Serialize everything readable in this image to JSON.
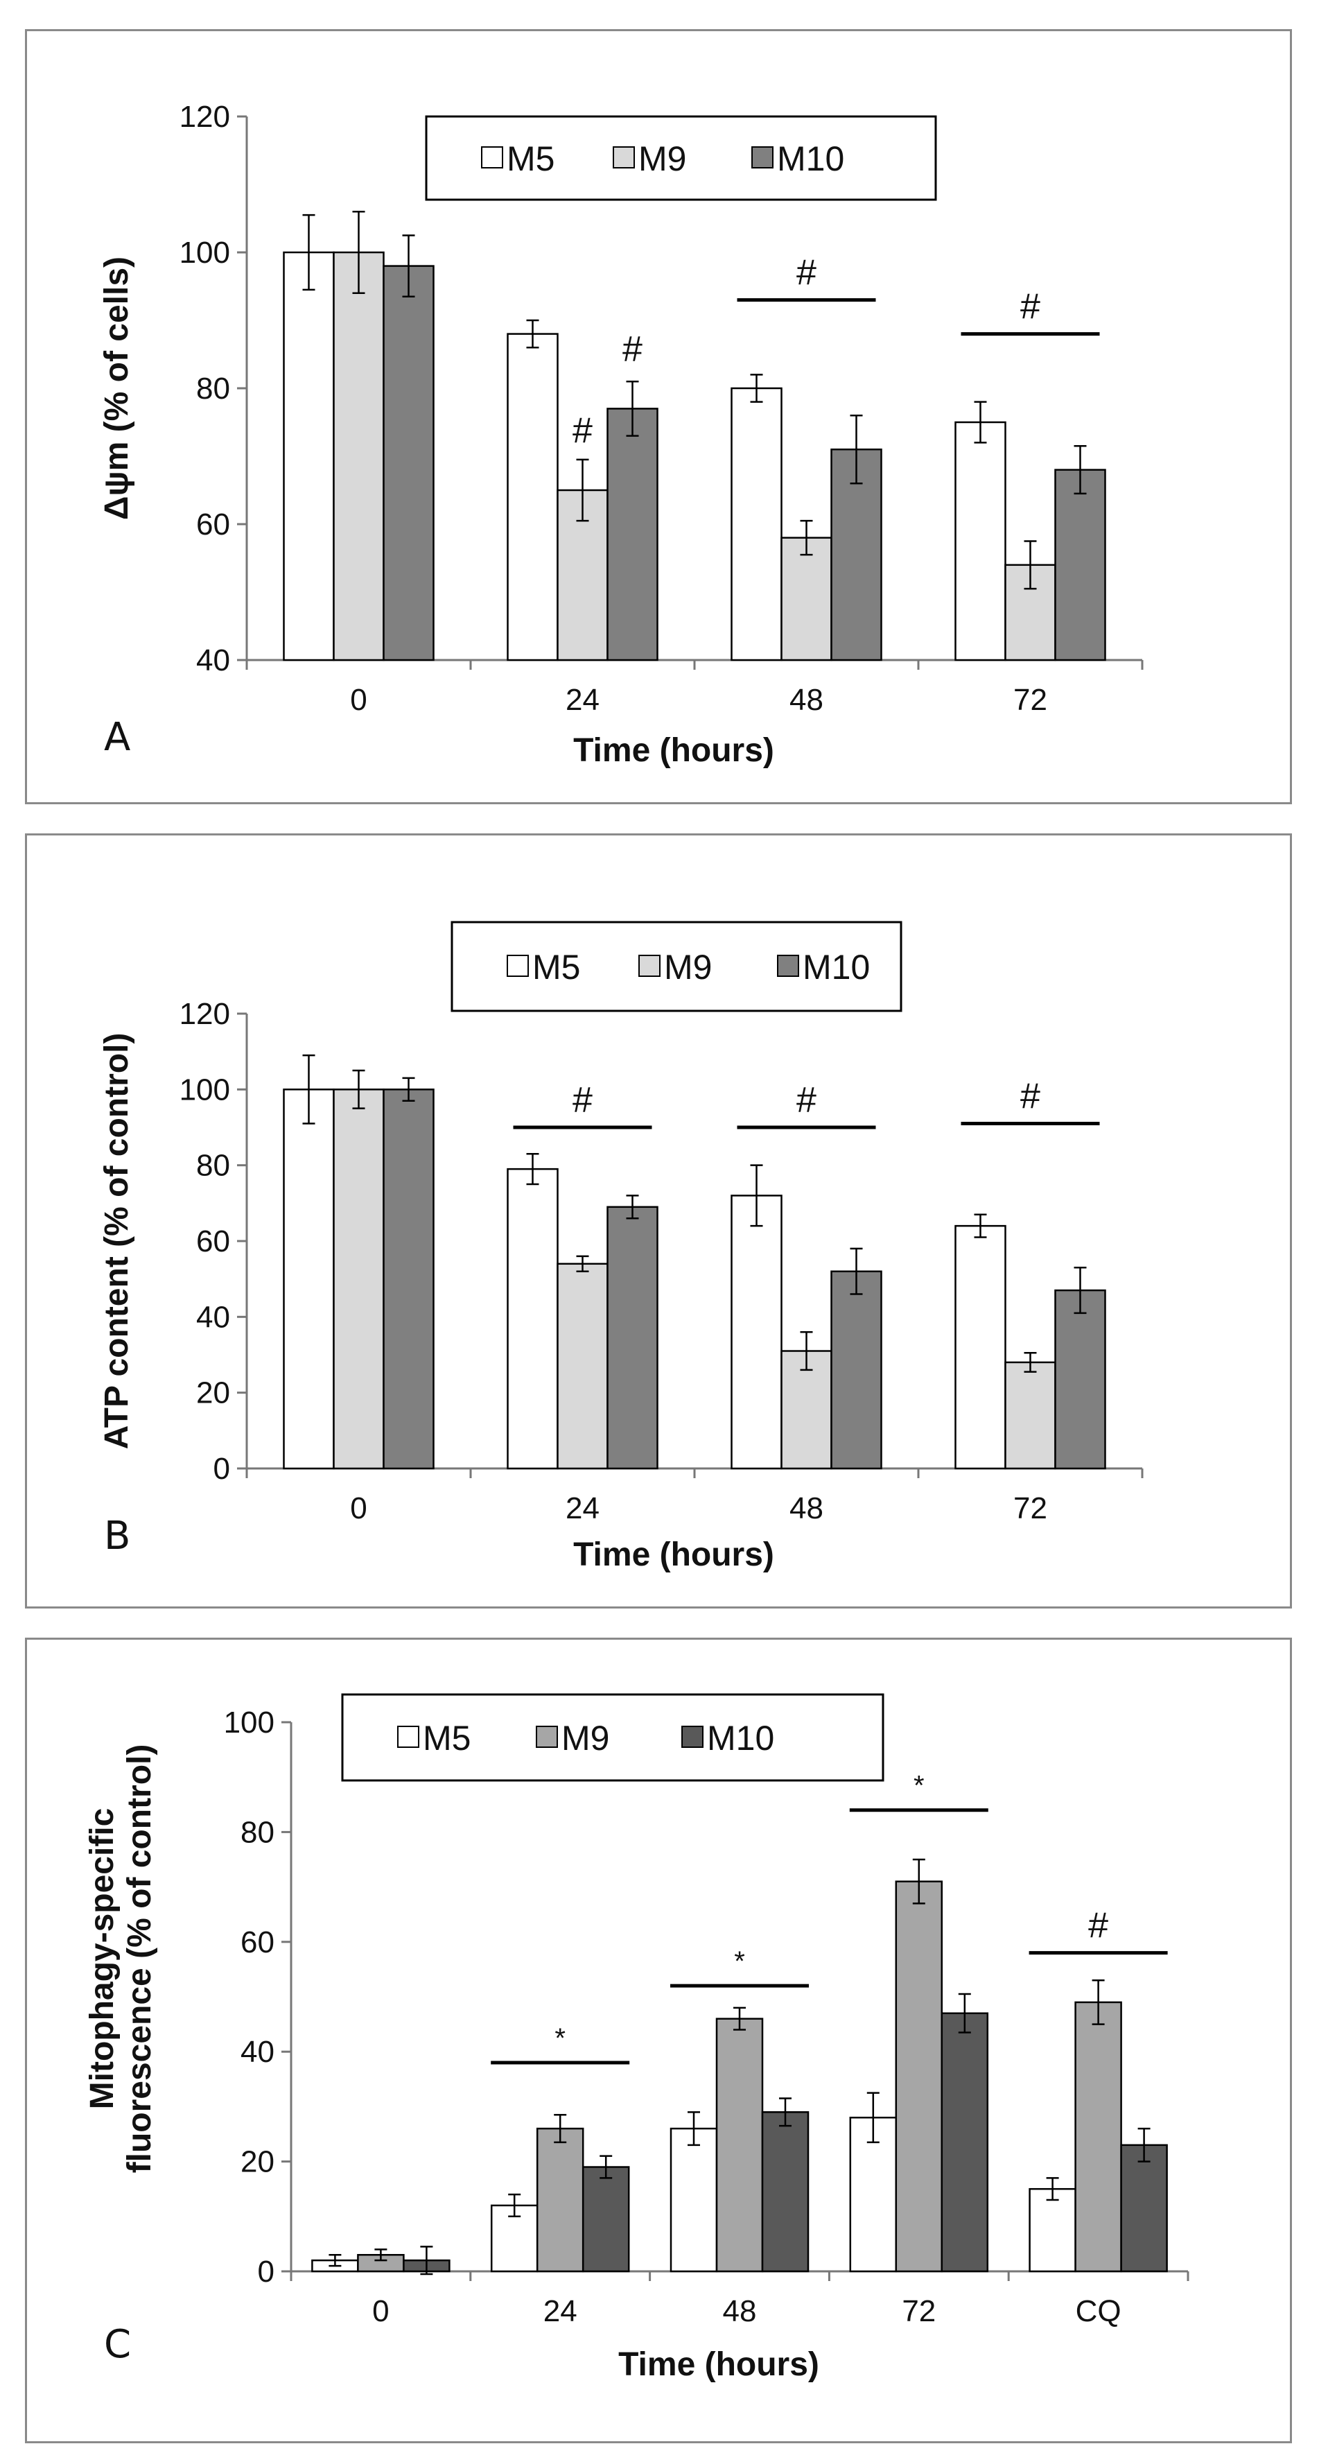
{
  "chart_data": [
    {
      "panel": "A",
      "type": "bar",
      "categories": [
        "0",
        "24",
        "48",
        "72"
      ],
      "series": [
        {
          "name": "M5",
          "color": "#ffffff",
          "values": [
            100,
            88,
            80,
            75
          ],
          "errors": [
            5.5,
            2,
            2,
            3
          ]
        },
        {
          "name": "M9",
          "color": "#d9d9d9",
          "values": [
            100,
            65,
            58,
            54
          ],
          "errors": [
            6,
            4.5,
            2.5,
            3.5
          ]
        },
        {
          "name": "M10",
          "color": "#808080",
          "values": [
            98,
            77,
            71,
            68
          ],
          "errors": [
            4.5,
            4,
            5,
            3.5
          ]
        }
      ],
      "yticks": [
        40,
        60,
        80,
        100,
        120
      ],
      "ylim": [
        40,
        120
      ],
      "xlabel": "Time (hours)",
      "ylabel": "Δψm (% of cells)",
      "legend": "top-center",
      "annotations": [
        {
          "text": "#",
          "category": 1,
          "series": 1,
          "y": 72,
          "size": "large",
          "line": false
        },
        {
          "text": "#",
          "category": 1,
          "series": 2,
          "y": 84,
          "size": "large",
          "line": false
        },
        {
          "text": "#",
          "category": 2,
          "y": 93,
          "size": "large",
          "line": true
        },
        {
          "text": "#",
          "category": 3,
          "y": 88,
          "size": "large",
          "line": true
        }
      ]
    },
    {
      "panel": "B",
      "type": "bar",
      "categories": [
        "0",
        "24",
        "48",
        "72"
      ],
      "series": [
        {
          "name": "M5",
          "color": "#ffffff",
          "values": [
            100,
            79,
            72,
            64
          ],
          "errors": [
            9,
            4,
            8,
            3
          ]
        },
        {
          "name": "M9",
          "color": "#d9d9d9",
          "values": [
            100,
            54,
            31,
            28
          ],
          "errors": [
            5,
            2,
            5,
            2.5
          ]
        },
        {
          "name": "M10",
          "color": "#808080",
          "values": [
            100,
            69,
            52,
            47
          ],
          "errors": [
            3,
            3,
            6,
            6
          ]
        }
      ],
      "yticks": [
        0,
        20,
        40,
        60,
        80,
        100,
        120
      ],
      "ylim": [
        0,
        120
      ],
      "xlabel": "Time (hours)",
      "ylabel": "ATP content (% of control)",
      "legend": "top-center",
      "annotations": [
        {
          "text": "#",
          "category": 1,
          "y": 90,
          "size": "large",
          "line": true
        },
        {
          "text": "#",
          "category": 2,
          "y": 90,
          "size": "large",
          "line": true
        },
        {
          "text": "#",
          "category": 3,
          "y": 91,
          "size": "large",
          "line": true
        }
      ]
    },
    {
      "panel": "C",
      "type": "bar",
      "categories": [
        "0",
        "24",
        "48",
        "72",
        "CQ"
      ],
      "series": [
        {
          "name": "M5",
          "color": "#ffffff",
          "values": [
            2,
            12,
            26,
            28,
            15
          ],
          "errors": [
            1,
            2,
            3,
            4.5,
            2
          ]
        },
        {
          "name": "M9",
          "color": "#a6a6a6",
          "values": [
            3,
            26,
            46,
            71,
            49
          ],
          "errors": [
            1,
            2.5,
            2,
            4,
            4
          ]
        },
        {
          "name": "M10",
          "color": "#595959",
          "values": [
            2,
            19,
            29,
            47,
            23
          ],
          "errors": [
            2.5,
            2,
            2.5,
            3.5,
            3
          ]
        }
      ],
      "yticks": [
        0,
        20,
        40,
        60,
        80,
        100
      ],
      "ylim": [
        0,
        100
      ],
      "xlabel": "Time (hours)",
      "ylabel": [
        "Mitophagy-specific",
        "fluorescence (% of control)"
      ],
      "legend": "top-left",
      "annotations": [
        {
          "text": "*",
          "category": 1,
          "y": 38,
          "size": "small",
          "line": true
        },
        {
          "text": "*",
          "category": 2,
          "y": 52,
          "size": "small",
          "line": true
        },
        {
          "text": "*",
          "category": 3,
          "y": 84,
          "size": "small",
          "line": true
        },
        {
          "text": "#",
          "category": 4,
          "y": 58,
          "size": "large",
          "line": true
        }
      ]
    }
  ],
  "panel_labels": [
    "A",
    "B",
    "C"
  ]
}
